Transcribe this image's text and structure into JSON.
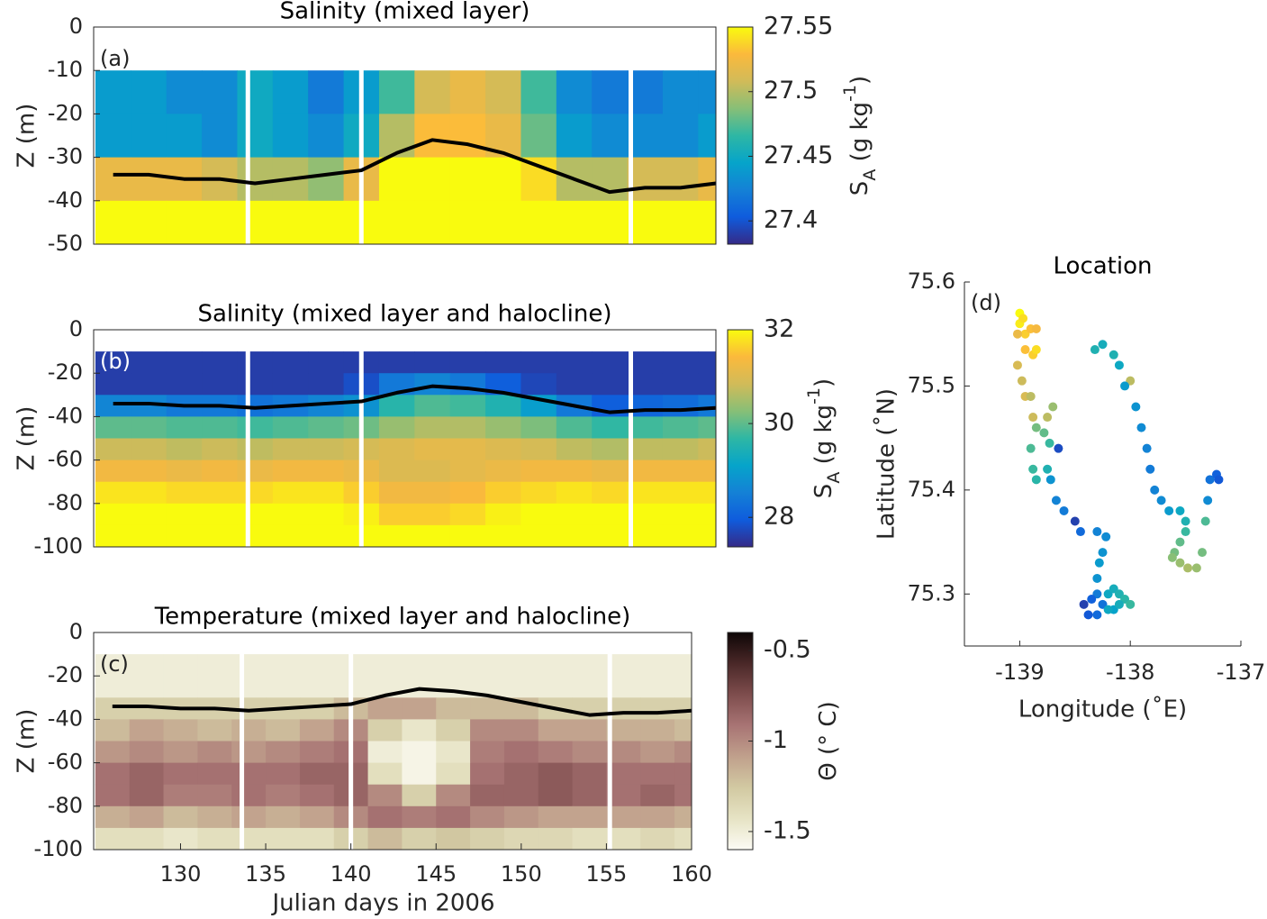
{
  "chart_data": [
    {
      "type": "heatmap",
      "title": "Salinity (mixed layer)",
      "label": "(a)",
      "ylabel": "Z (m)",
      "xlim": [
        124.9,
        160
      ],
      "ylim": [
        -50,
        0
      ],
      "yticks": [
        0,
        -10,
        -20,
        -30,
        -40,
        -50
      ],
      "x": [
        126,
        128,
        130,
        132,
        134,
        136,
        138,
        140,
        142,
        144,
        146,
        148,
        150,
        152,
        154,
        156,
        158,
        160
      ],
      "y": [
        -15,
        -25,
        -35,
        -45
      ],
      "z": [
        [
          27.44,
          27.44,
          27.43,
          27.43,
          27.45,
          27.44,
          27.42,
          27.44,
          27.47,
          27.51,
          27.52,
          27.51,
          27.47,
          27.43,
          27.42,
          27.42,
          27.43,
          27.43
        ],
        [
          27.44,
          27.44,
          27.44,
          27.43,
          27.45,
          27.44,
          27.43,
          27.45,
          27.5,
          27.53,
          27.53,
          27.52,
          27.48,
          27.44,
          27.43,
          27.43,
          27.43,
          27.44
        ],
        [
          27.52,
          27.52,
          27.52,
          27.51,
          27.5,
          27.5,
          27.49,
          27.52,
          27.55,
          27.55,
          27.55,
          27.55,
          27.54,
          27.5,
          27.5,
          27.51,
          27.51,
          27.52
        ],
        [
          27.55,
          27.55,
          27.55,
          27.55,
          27.55,
          27.55,
          27.55,
          27.55,
          27.55,
          27.55,
          27.55,
          27.55,
          27.55,
          27.55,
          27.55,
          27.55,
          27.55,
          27.55
        ]
      ],
      "contour_depth": [
        -34,
        -34,
        -35,
        -35,
        -36,
        -35,
        -34,
        -33,
        -29,
        -26,
        -27,
        -29,
        -32,
        -35,
        -38,
        -37,
        -37,
        -36
      ],
      "gaps": [
        133.6,
        140.0,
        155.2
      ],
      "colorbar": {
        "clim": [
          27.382,
          27.55
        ],
        "ticks": [
          27.55,
          27.5,
          27.45,
          27.4
        ],
        "colormap": [
          "#352a87",
          "#0f5cdd",
          "#1481d6",
          "#06a4ca",
          "#2eb7a4",
          "#87bf77",
          "#d1bb59",
          "#fbb93c",
          "#f9fb0e"
        ],
        "label_parts": [
          {
            "text": "S"
          },
          {
            "text": "A",
            "shift": "sub"
          },
          {
            "text": " (g kg"
          },
          {
            "text": "-1",
            "shift": "super"
          },
          {
            "text": ")"
          }
        ]
      }
    },
    {
      "type": "heatmap",
      "title": "Salinity (mixed layer and halocline)",
      "label": "(b)",
      "ylabel": "Z (m)",
      "xlim": [
        124.9,
        160
      ],
      "ylim": [
        -100,
        0
      ],
      "yticks": [
        0,
        -20,
        -40,
        -60,
        -80,
        -100
      ],
      "x": [
        126,
        128,
        130,
        132,
        134,
        136,
        138,
        140,
        142,
        144,
        146,
        148,
        150,
        152,
        154,
        156,
        158,
        160
      ],
      "y": [
        -15,
        -25,
        -35,
        -45,
        -55,
        -65,
        -75,
        -85,
        -95
      ],
      "z": [
        [
          27.6,
          27.6,
          27.6,
          27.6,
          27.6,
          27.6,
          27.6,
          27.6,
          27.6,
          27.6,
          27.6,
          27.6,
          27.6,
          27.6,
          27.6,
          27.6,
          27.6,
          27.6
        ],
        [
          27.6,
          27.6,
          27.6,
          27.6,
          27.6,
          27.6,
          27.6,
          27.8,
          28.4,
          28.6,
          28.4,
          28.0,
          27.7,
          27.6,
          27.6,
          27.6,
          27.6,
          27.6
        ],
        [
          28.6,
          28.6,
          28.4,
          28.4,
          28.3,
          28.4,
          28.6,
          28.8,
          29.6,
          29.9,
          29.8,
          29.5,
          29.0,
          28.4,
          28.0,
          28.1,
          28.2,
          28.4
        ],
        [
          30.0,
          30.0,
          29.9,
          29.9,
          29.8,
          29.9,
          30.0,
          30.1,
          30.4,
          30.6,
          30.6,
          30.4,
          30.2,
          29.9,
          29.7,
          29.8,
          29.9,
          30.0
        ],
        [
          30.8,
          30.8,
          30.7,
          30.8,
          30.7,
          30.8,
          30.8,
          30.9,
          31.0,
          31.1,
          31.1,
          31.0,
          30.9,
          30.7,
          30.6,
          30.7,
          30.7,
          30.8
        ],
        [
          31.3,
          31.3,
          31.2,
          31.3,
          31.2,
          31.3,
          31.3,
          31.2,
          31.0,
          31.0,
          31.1,
          31.2,
          31.3,
          31.3,
          31.2,
          31.3,
          31.3,
          31.3
        ],
        [
          31.8,
          31.8,
          31.7,
          31.7,
          31.7,
          31.8,
          31.8,
          31.6,
          31.3,
          31.3,
          31.4,
          31.6,
          31.7,
          31.8,
          31.7,
          31.8,
          31.8,
          31.8
        ],
        [
          32,
          32,
          32,
          32,
          32,
          32,
          32,
          31.9,
          31.6,
          31.6,
          31.7,
          31.9,
          32,
          32,
          32,
          32,
          32,
          32
        ],
        [
          32,
          32,
          32,
          32,
          32,
          32,
          32,
          32,
          32,
          32,
          32,
          32,
          32,
          32,
          32,
          32,
          32,
          32
        ]
      ],
      "contour_depth": [
        -34,
        -34,
        -35,
        -35,
        -36,
        -35,
        -34,
        -33,
        -29,
        -26,
        -27,
        -29,
        -32,
        -35,
        -38,
        -37,
        -37,
        -36
      ],
      "gaps": [
        133.6,
        140.0,
        155.2
      ],
      "colorbar": {
        "clim": [
          27.37,
          32
        ],
        "ticks": [
          32,
          30,
          28
        ],
        "colormap": [
          "#352a87",
          "#0f5cdd",
          "#1481d6",
          "#06a4ca",
          "#2eb7a4",
          "#87bf77",
          "#d1bb59",
          "#fbb93c",
          "#f9fb0e"
        ],
        "label_parts": [
          {
            "text": "S"
          },
          {
            "text": "A",
            "shift": "sub"
          },
          {
            "text": " (g kg"
          },
          {
            "text": "-1",
            "shift": "super"
          },
          {
            "text": ")"
          }
        ]
      }
    },
    {
      "type": "heatmap",
      "title": "Temperature (mixed layer and halocline)",
      "label": "(c)",
      "ylabel": "Z (m)",
      "xlabel": "Julian days in 2006",
      "xlim": [
        124.9,
        160
      ],
      "ylim": [
        -100,
        0
      ],
      "yticks": [
        0,
        -20,
        -40,
        -60,
        -80,
        -100
      ],
      "xticks": [
        130,
        135,
        140,
        145,
        150,
        155,
        160
      ],
      "x": [
        126,
        128,
        130,
        132,
        134,
        136,
        138,
        140,
        142,
        144,
        146,
        148,
        150,
        152,
        154,
        156,
        158,
        160
      ],
      "y": [
        -15,
        -25,
        -35,
        -45,
        -55,
        -65,
        -75,
        -85,
        -95
      ],
      "z": [
        [
          -1.5,
          -1.5,
          -1.5,
          -1.5,
          -1.5,
          -1.5,
          -1.5,
          -1.5,
          -1.5,
          -1.5,
          -1.5,
          -1.5,
          -1.5,
          -1.5,
          -1.5,
          -1.5,
          -1.5,
          -1.5
        ],
        [
          -1.5,
          -1.5,
          -1.5,
          -1.5,
          -1.5,
          -1.5,
          -1.5,
          -1.5,
          -1.5,
          -1.5,
          -1.5,
          -1.5,
          -1.5,
          -1.5,
          -1.5,
          -1.5,
          -1.5,
          -1.5
        ],
        [
          -1.3,
          -1.3,
          -1.3,
          -1.3,
          -1.3,
          -1.3,
          -1.3,
          -1.2,
          -1.1,
          -1.1,
          -1.2,
          -1.2,
          -1.2,
          -1.3,
          -1.3,
          -1.3,
          -1.3,
          -1.3
        ],
        [
          -1.2,
          -1.1,
          -1.15,
          -1.2,
          -1.15,
          -1.2,
          -1.1,
          -1.0,
          -1.3,
          -1.45,
          -1.3,
          -1.0,
          -1.0,
          -1.1,
          -1.1,
          -1.15,
          -1.15,
          -1.2
        ],
        [
          -1.05,
          -1.0,
          -1.05,
          -1.0,
          -1.05,
          -1.0,
          -0.95,
          -0.9,
          -1.5,
          -1.55,
          -1.45,
          -0.95,
          -0.9,
          -0.95,
          -1.0,
          -1.0,
          -1.05,
          -1.0
        ],
        [
          -0.9,
          -0.85,
          -0.9,
          -0.9,
          -0.9,
          -0.9,
          -0.85,
          -0.85,
          -1.4,
          -1.55,
          -1.4,
          -0.9,
          -0.85,
          -0.8,
          -0.85,
          -0.9,
          -0.9,
          -0.9
        ],
        [
          -0.9,
          -0.85,
          -0.95,
          -0.95,
          -0.9,
          -0.95,
          -0.9,
          -0.85,
          -1.0,
          -1.3,
          -1.0,
          -0.85,
          -0.85,
          -0.8,
          -0.85,
          -0.9,
          -0.85,
          -0.9
        ],
        [
          -1.15,
          -1.1,
          -1.2,
          -1.15,
          -1.1,
          -1.15,
          -1.1,
          -1.0,
          -0.9,
          -0.95,
          -0.9,
          -1.0,
          -1.05,
          -1.1,
          -1.1,
          -1.1,
          -1.1,
          -1.15
        ],
        [
          -1.4,
          -1.4,
          -1.45,
          -1.4,
          -1.4,
          -1.4,
          -1.4,
          -1.3,
          -1.2,
          -1.3,
          -1.25,
          -1.3,
          -1.35,
          -1.35,
          -1.4,
          -1.4,
          -1.35,
          -1.4
        ]
      ],
      "contour_depth": [
        -34,
        -34,
        -35,
        -35,
        -36,
        -35,
        -34,
        -33,
        -29,
        -26,
        -27,
        -29,
        -32,
        -35,
        -38,
        -37,
        -37,
        -36
      ],
      "gaps": [
        133.6,
        140.0,
        155.2
      ],
      "colorbar": {
        "clim": [
          -1.6,
          -0.4
        ],
        "ticks": [
          -0.5,
          -1,
          -1.5
        ],
        "colormap": [
          "#fcfbf4",
          "#e6e3c4",
          "#d2c9a2",
          "#c0a08c",
          "#a87474",
          "#7e4d4d",
          "#4a2828",
          "#0e0606"
        ],
        "label_parts": [
          {
            "text": "Θ (° C)"
          }
        ]
      }
    },
    {
      "type": "scatter",
      "title": "Location",
      "label": "(d)",
      "xlabel": "Longitude (˚E)",
      "ylabel": "Latitude (˚N)",
      "xlim": [
        -139.5,
        -137
      ],
      "ylim": [
        75.25,
        75.6
      ],
      "xticks": [
        -139,
        -138,
        -137
      ],
      "yticks": [
        75.3,
        75.4,
        75.5,
        75.6
      ],
      "clim": [
        125,
        160
      ],
      "colormap": [
        "#352a87",
        "#0f5cdd",
        "#1481d6",
        "#06a4ca",
        "#2eb7a4",
        "#87bf77",
        "#d1bb59",
        "#fbb93c",
        "#f9fb0e"
      ],
      "x": [
        -139.0,
        -139.0,
        -138.97,
        -138.95,
        -138.9,
        -138.85,
        -138.95,
        -138.88,
        -138.85,
        -139.02,
        -139.02,
        -138.98,
        -138.95,
        -138.9,
        -138.88,
        -138.75,
        -138.7,
        -138.85,
        -138.78,
        -138.9,
        -138.73,
        -138.88,
        -138.85,
        -138.75,
        -138.65,
        -138.72,
        -138.67,
        -138.6,
        -138.5,
        -138.45,
        -138.3,
        -138.22,
        -138.25,
        -138.28,
        -138.3,
        -138.3,
        -138.35,
        -138.42,
        -138.38,
        -138.3,
        -138.25,
        -138.2,
        -138.15,
        -138.1,
        -138.05,
        -138.0,
        -138.15,
        -138.2,
        -138.1,
        -138.0,
        -138.15,
        -138.25,
        -138.32,
        -138.1,
        -138.05,
        -137.95,
        -137.9,
        -137.85,
        -137.82,
        -137.78,
        -137.72,
        -137.65,
        -137.55,
        -137.5,
        -137.5,
        -137.55,
        -137.6,
        -137.62,
        -137.55,
        -137.48,
        -137.4,
        -137.35,
        -137.32,
        -137.3,
        -137.28,
        -137.22,
        -137.2
      ],
      "y": [
        75.57,
        75.56,
        75.565,
        75.55,
        75.555,
        75.555,
        75.535,
        75.53,
        75.535,
        75.55,
        75.52,
        75.505,
        75.49,
        75.49,
        75.47,
        75.47,
        75.48,
        75.46,
        75.455,
        75.44,
        75.445,
        75.42,
        75.41,
        75.42,
        75.44,
        75.41,
        75.39,
        75.38,
        75.37,
        75.36,
        75.36,
        75.355,
        75.34,
        75.33,
        75.315,
        75.3,
        75.295,
        75.29,
        75.28,
        75.28,
        75.29,
        75.3,
        75.305,
        75.3,
        75.295,
        75.29,
        75.285,
        75.285,
        75.29,
        75.505,
        75.53,
        75.54,
        75.535,
        75.52,
        75.5,
        75.48,
        75.46,
        75.44,
        75.42,
        75.4,
        75.39,
        75.38,
        75.38,
        75.37,
        75.36,
        75.35,
        75.34,
        75.335,
        75.33,
        75.325,
        75.325,
        75.34,
        75.37,
        75.39,
        75.41,
        75.415,
        75.41
      ],
      "c": [
        160,
        159,
        158,
        157,
        156,
        155,
        156,
        157,
        158,
        154,
        152,
        151,
        152,
        150,
        151,
        150,
        148,
        146,
        145,
        144,
        143,
        143,
        142,
        141,
        128,
        136,
        134,
        133,
        127,
        131,
        134,
        135,
        136,
        137,
        136,
        133,
        130,
        127,
        129,
        131,
        132,
        139,
        140,
        141,
        142,
        143,
        138,
        139,
        140,
        150,
        141,
        140,
        141,
        139,
        137,
        136,
        135,
        134,
        133,
        134,
        135,
        137,
        139,
        141,
        143,
        145,
        146,
        147,
        148,
        149,
        148,
        146,
        144,
        135,
        132,
        130,
        129
      ]
    }
  ]
}
